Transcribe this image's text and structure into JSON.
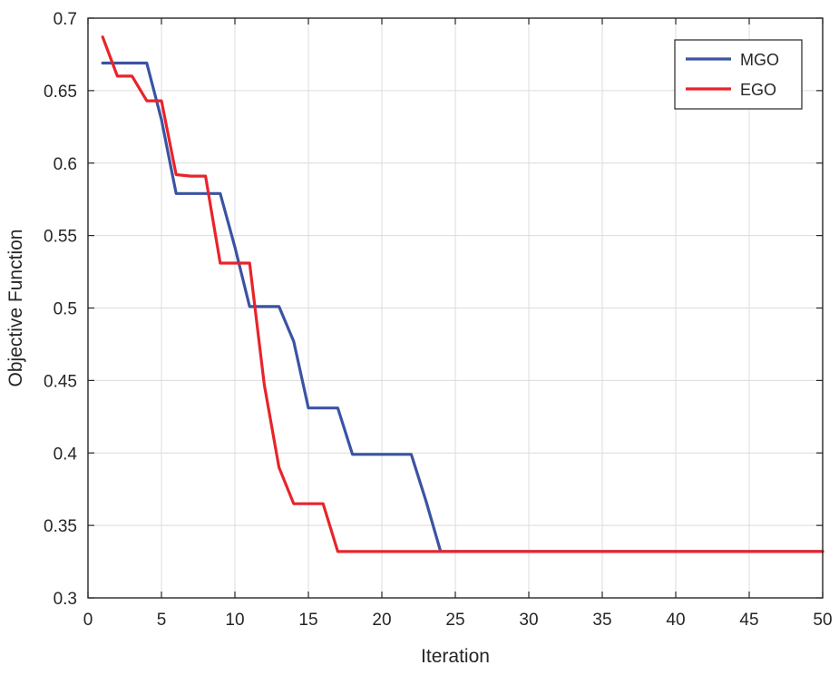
{
  "chart_data": {
    "type": "line",
    "title": "",
    "xlabel": "Iteration",
    "ylabel": "Objective Function",
    "xlim": [
      0,
      50
    ],
    "ylim": [
      0.3,
      0.7
    ],
    "xticks": [
      0,
      5,
      10,
      15,
      20,
      25,
      30,
      35,
      40,
      45,
      50
    ],
    "yticks": [
      0.3,
      0.35,
      0.4,
      0.45,
      0.5,
      0.55,
      0.6,
      0.65,
      0.7
    ],
    "xtick_labels": [
      "0",
      "5",
      "10",
      "15",
      "20",
      "25",
      "30",
      "35",
      "40",
      "45",
      "50"
    ],
    "ytick_labels": [
      "0.3",
      "0.35",
      "0.4",
      "0.45",
      "0.5",
      "0.55",
      "0.6",
      "0.65",
      "0.7"
    ],
    "grid": true,
    "legend_position": "top-right",
    "series": [
      {
        "name": "MGO",
        "color": "#3a53a4",
        "points": [
          [
            1,
            0.669
          ],
          [
            2,
            0.669
          ],
          [
            3,
            0.669
          ],
          [
            4,
            0.669
          ],
          [
            5,
            0.63
          ],
          [
            6,
            0.579
          ],
          [
            7,
            0.579
          ],
          [
            8,
            0.579
          ],
          [
            9,
            0.579
          ],
          [
            10,
            0.542
          ],
          [
            11,
            0.501
          ],
          [
            12,
            0.501
          ],
          [
            13,
            0.501
          ],
          [
            14,
            0.477
          ],
          [
            15,
            0.431
          ],
          [
            16,
            0.431
          ],
          [
            17,
            0.431
          ],
          [
            18,
            0.399
          ],
          [
            19,
            0.399
          ],
          [
            20,
            0.399
          ],
          [
            21,
            0.399
          ],
          [
            22,
            0.399
          ],
          [
            23,
            0.367
          ],
          [
            24,
            0.332
          ],
          [
            50,
            0.332
          ]
        ]
      },
      {
        "name": "EGO",
        "color": "#e8242a",
        "points": [
          [
            1,
            0.687
          ],
          [
            2,
            0.66
          ],
          [
            3,
            0.66
          ],
          [
            4,
            0.643
          ],
          [
            5,
            0.643
          ],
          [
            6,
            0.592
          ],
          [
            7,
            0.591
          ],
          [
            8,
            0.591
          ],
          [
            9,
            0.531
          ],
          [
            10,
            0.531
          ],
          [
            11,
            0.531
          ],
          [
            12,
            0.447
          ],
          [
            13,
            0.39
          ],
          [
            14,
            0.365
          ],
          [
            15,
            0.365
          ],
          [
            16,
            0.365
          ],
          [
            17,
            0.332
          ],
          [
            50,
            0.332
          ]
        ]
      }
    ]
  }
}
